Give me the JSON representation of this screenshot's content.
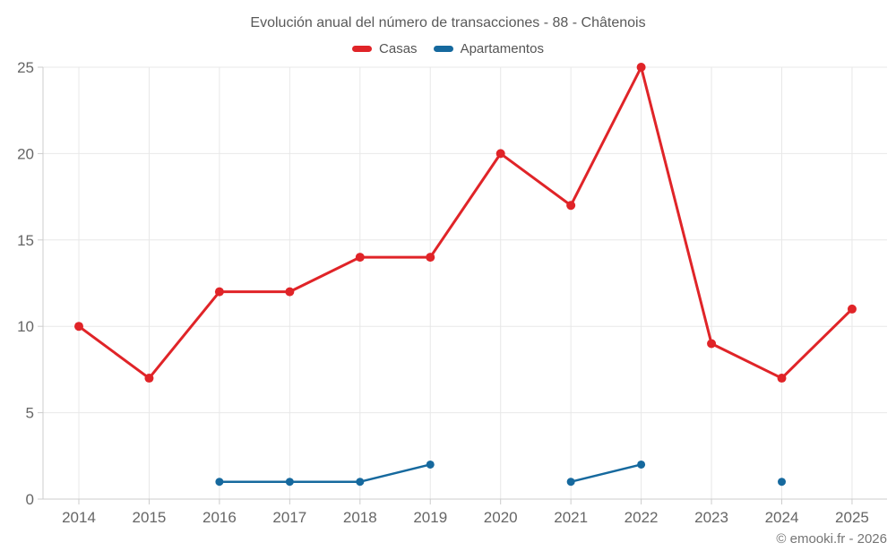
{
  "title": "Evolución anual del número de transacciones - 88 - Châtenois",
  "legend": [
    {
      "label": "Casas",
      "color": "#e02428"
    },
    {
      "label": "Apartamentos",
      "color": "#16699e"
    }
  ],
  "footer": "© emooki.fr - 2026",
  "colors": {
    "background": "#ffffff",
    "grid": "#e8e8e8",
    "axis": "#cccccc",
    "tick_text": "#666666",
    "title_text": "#595959",
    "casas": "#e02428",
    "apartamentos": "#16699e"
  },
  "chart_data": {
    "type": "line",
    "title": "Evolución anual del número de transacciones - 88 - Châtenois",
    "categories": [
      "2014",
      "2015",
      "2016",
      "2017",
      "2018",
      "2019",
      "2020",
      "2021",
      "2022",
      "2023",
      "2024",
      "2025"
    ],
    "series": [
      {
        "name": "Casas",
        "color": "#e02428",
        "values": [
          10,
          7,
          12,
          12,
          14,
          14,
          20,
          17,
          25,
          9,
          7,
          11
        ]
      },
      {
        "name": "Apartamentos",
        "color": "#16699e",
        "values": [
          null,
          null,
          1,
          1,
          1,
          2,
          null,
          1,
          2,
          null,
          1,
          null
        ]
      }
    ],
    "xlabel": "",
    "ylabel": "",
    "ylim": [
      0,
      25
    ],
    "yticks": [
      0,
      5,
      10,
      15,
      20,
      25
    ],
    "grid": true,
    "legend_position": "top"
  }
}
